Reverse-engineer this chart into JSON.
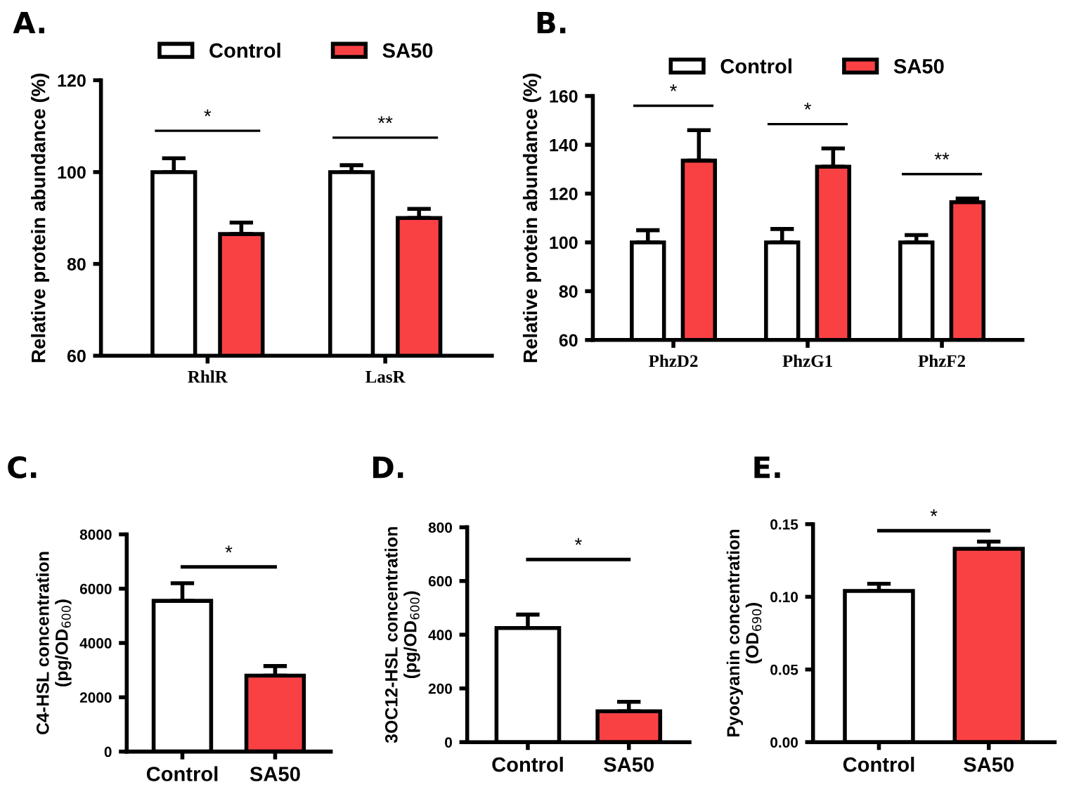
{
  "chart_data": [
    {
      "type": "bar",
      "title": "A.",
      "ylabel": "Relative protein abundance (%)",
      "categories": [
        "RhlR",
        "LasR"
      ],
      "ylim": [
        60,
        120
      ],
      "yticks": [
        60,
        80,
        100,
        120
      ],
      "grid": false,
      "legend": "top",
      "series": [
        {
          "name": "Control",
          "color": "#ffffff",
          "values": [
            100,
            100
          ],
          "errors": [
            [
              100,
              103
            ],
            [
              100,
              101.5
            ]
          ]
        },
        {
          "name": "SA50",
          "color": "#f94144",
          "values": [
            86.5,
            90
          ],
          "errors": [
            [
              86.5,
              89
            ],
            [
              90,
              92
            ]
          ]
        }
      ],
      "annotations": [
        "*",
        "**"
      ]
    },
    {
      "type": "bar",
      "title": "B.",
      "ylabel": "Relative protein abundance (%)",
      "categories": [
        "PhzD2",
        "PhzG1",
        "PhzF2"
      ],
      "ylim": [
        60,
        160
      ],
      "yticks": [
        60,
        80,
        100,
        120,
        140,
        160
      ],
      "grid": false,
      "legend": "top",
      "series": [
        {
          "name": "Control",
          "color": "#ffffff",
          "values": [
            100,
            100,
            100
          ],
          "errors": [
            [
              100,
              105
            ],
            [
              100,
              105.5
            ],
            [
              100,
              103
            ]
          ]
        },
        {
          "name": "SA50",
          "color": "#f94144",
          "values": [
            133.5,
            131,
            116.5
          ],
          "errors": [
            [
              133.5,
              146
            ],
            [
              131,
              138.5
            ],
            [
              116.5,
              118
            ]
          ]
        }
      ],
      "annotations": [
        "*",
        "*",
        "**"
      ]
    },
    {
      "type": "bar",
      "title": "C.",
      "ylabel": "C4-HSL concentration\n(pg/OD$_{600}$)",
      "categories": [
        "Control",
        "SA50"
      ],
      "ylim": [
        0,
        8000
      ],
      "yticks": [
        0,
        2000,
        4000,
        6000,
        8000
      ],
      "grid": false,
      "values": [
        5550,
        2800
      ],
      "colors": [
        "#ffffff",
        "#f94144"
      ],
      "errors": [
        [
          5550,
          6200
        ],
        [
          2800,
          3150
        ]
      ],
      "annotations": [
        "*"
      ]
    },
    {
      "type": "bar",
      "title": "D.",
      "ylabel": "3OC12-HSL concentration\n(pg/OD$_{600}$)",
      "categories": [
        "Control",
        "SA50"
      ],
      "ylim": [
        0,
        800
      ],
      "yticks": [
        0,
        200,
        400,
        600,
        800
      ],
      "grid": false,
      "values": [
        425,
        115
      ],
      "colors": [
        "#ffffff",
        "#f94144"
      ],
      "errors": [
        [
          425,
          475
        ],
        [
          115,
          150
        ]
      ],
      "annotations": [
        "*"
      ]
    },
    {
      "type": "bar",
      "title": "E.",
      "ylabel": "Pyocyanin concentration\n(OD$_{690}$)",
      "categories": [
        "Control",
        "SA50"
      ],
      "ylim": [
        0,
        0.15
      ],
      "yticks": [
        {
          "value": 0,
          "label": "0.00"
        },
        {
          "value": 0.05,
          "label": "0.05"
        },
        {
          "value": 0.1,
          "label": "0.10"
        },
        {
          "value": 0.15,
          "label": "0.15"
        }
      ],
      "grid": false,
      "values": [
        0.104,
        0.133
      ],
      "colors": [
        "#ffffff",
        "#f94144"
      ],
      "errors": [
        [
          0.104,
          0.109
        ],
        [
          0.133,
          0.138
        ]
      ],
      "annotations": [
        "*"
      ]
    }
  ]
}
